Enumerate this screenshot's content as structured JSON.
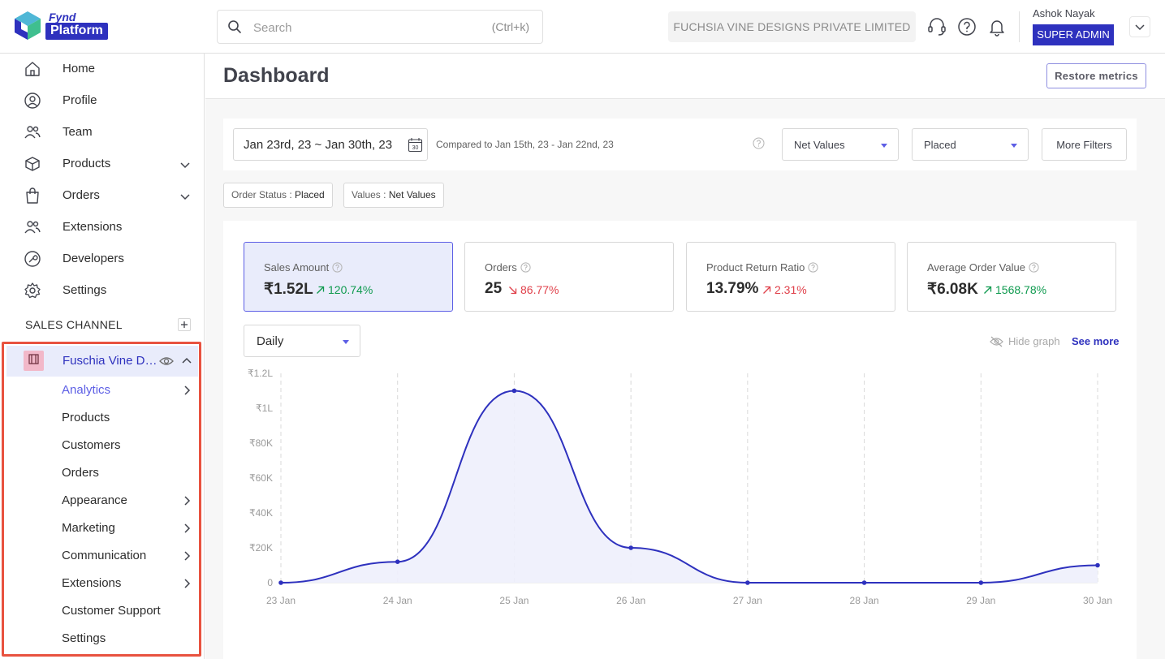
{
  "brand": {
    "line1": "Fynd",
    "line2": "Platform"
  },
  "search": {
    "placeholder": "Search",
    "shortcut": "(Ctrl+k)"
  },
  "company": "FUCHSIA VINE DESIGNS PRIVATE LIMITED",
  "user": {
    "name": "Ashok Nayak",
    "role": "SUPER ADMIN"
  },
  "sidebar": {
    "items": [
      {
        "label": "Home",
        "icon": "home-icon"
      },
      {
        "label": "Profile",
        "icon": "profile-icon"
      },
      {
        "label": "Team",
        "icon": "team-icon"
      },
      {
        "label": "Products",
        "icon": "box-icon"
      },
      {
        "label": "Orders",
        "icon": "bag-icon"
      },
      {
        "label": "Extensions",
        "icon": "extensions-icon"
      },
      {
        "label": "Developers",
        "icon": "developers-icon"
      },
      {
        "label": "Settings",
        "icon": "gear-icon"
      }
    ],
    "section_label": "SALES CHANNEL",
    "channel": {
      "name": "Fuschia Vine De...",
      "subitems": [
        "Analytics",
        "Products",
        "Customers",
        "Orders",
        "Appearance",
        "Marketing",
        "Communication",
        "Extensions",
        "Customer Support",
        "Settings"
      ]
    }
  },
  "page": {
    "title": "Dashboard",
    "restore_label": "Restore metrics"
  },
  "filters": {
    "date_range": "Jan 23rd, 23 ~ Jan 30th, 23",
    "calendar_day": "30",
    "compare_text": "Compared to Jan 15th, 23 - Jan 22nd, 23",
    "value_select": "Net Values",
    "status_select": "Placed",
    "more_label": "More Filters"
  },
  "chips": [
    {
      "key": "Order Status : ",
      "value": "Placed"
    },
    {
      "key": "Values : ",
      "value": "Net Values"
    }
  ],
  "metrics": [
    {
      "title": "Sales Amount",
      "value": "₹1.52L",
      "change": "120.74%",
      "direction": "up"
    },
    {
      "title": "Orders",
      "value": "25",
      "change": "86.77%",
      "direction": "down"
    },
    {
      "title": "Product Return Ratio",
      "value": "13.79%",
      "change": "2.31%",
      "direction": "up-bad"
    },
    {
      "title": "Average Order Value",
      "value": "₹6.08K",
      "change": "1568.78%",
      "direction": "up"
    }
  ],
  "graph_controls": {
    "period": "Daily",
    "hide_label": "Hide graph",
    "see_more": "See more"
  },
  "colors": {
    "accent": "#2e31be",
    "positive": "#0f9a4f",
    "negative": "#e0414b",
    "highlight": "#e8523f"
  },
  "chart_data": {
    "type": "area",
    "x": [
      "23 Jan",
      "24 Jan",
      "25 Jan",
      "26 Jan",
      "27 Jan",
      "28 Jan",
      "29 Jan",
      "30 Jan"
    ],
    "y_ticks": [
      "0",
      "₹20K",
      "₹40K",
      "₹60K",
      "₹80K",
      "₹1L",
      "₹1.2L"
    ],
    "series": [
      {
        "values": [
          0,
          12000,
          110000,
          20000,
          0,
          0,
          0,
          10000
        ]
      }
    ],
    "ylim": [
      0,
      120000
    ]
  }
}
